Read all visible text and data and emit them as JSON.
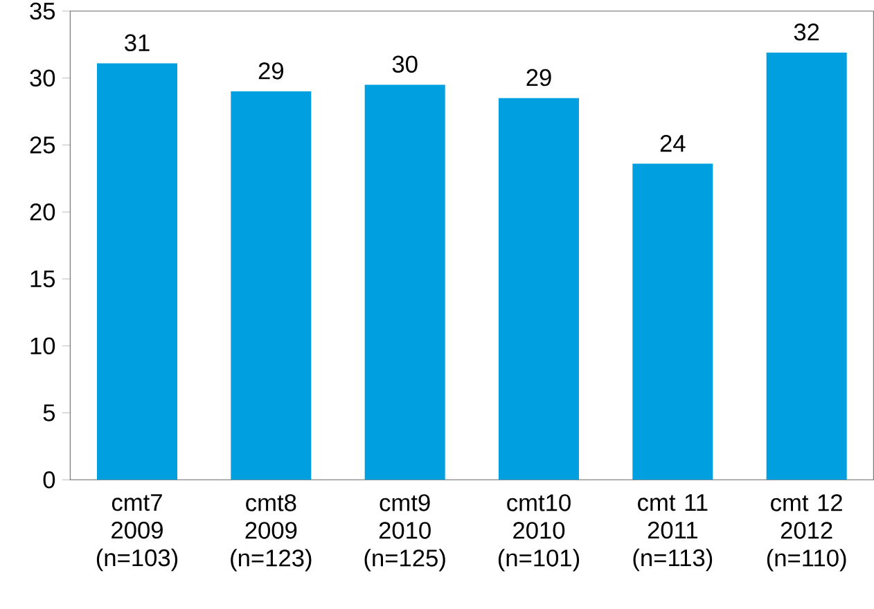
{
  "chart_data": {
    "type": "bar",
    "categories": [
      "cmt7 2009 (n=103)",
      "cmt8 2009 (n=123)",
      "cmt9 2010 (n=125)",
      "cmt10 2010 (n=101)",
      "cmt 11 2011 (n=113)",
      "cmt 12 2012 (n=110)"
    ],
    "values": [
      31.1,
      29,
      29.5,
      28.5,
      23.6,
      31.9
    ],
    "value_labels": [
      "31",
      "29",
      "30",
      "29",
      "24",
      "32"
    ],
    "color": "#009fdf",
    "ylim": [
      0,
      35
    ],
    "yticks": [
      0,
      5,
      10,
      15,
      20,
      25,
      30,
      35
    ],
    "grid": false
  }
}
